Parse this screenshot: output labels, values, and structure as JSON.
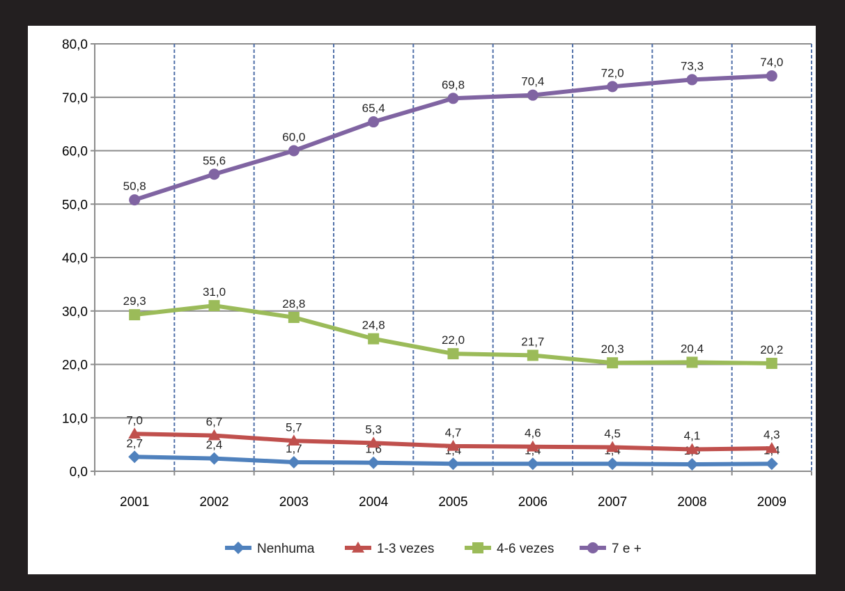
{
  "chart_data": {
    "type": "line",
    "categories": [
      "2001",
      "2002",
      "2003",
      "2004",
      "2005",
      "2006",
      "2007",
      "2008",
      "2009"
    ],
    "ylim": [
      0,
      80
    ],
    "yticks": [
      "0,0",
      "10,0",
      "20,0",
      "30,0",
      "40,0",
      "50,0",
      "60,0",
      "70,0",
      "80,0"
    ],
    "ytick_values": [
      0,
      10,
      20,
      30,
      40,
      50,
      60,
      70,
      80
    ],
    "grid": true,
    "legend_position": "bottom",
    "series": [
      {
        "name": "Nenhuma",
        "marker": "diamond",
        "color": "#4f81bd",
        "values": [
          2.7,
          2.4,
          1.7,
          1.6,
          1.4,
          1.4,
          1.4,
          1.3,
          1.4
        ],
        "labels": [
          "2,7",
          "2,4",
          "1,7",
          "1,6",
          "1,4",
          "1,4",
          "1,4",
          "1,3",
          "1,4"
        ]
      },
      {
        "name": "1-3 vezes",
        "marker": "triangle",
        "color": "#c0504d",
        "values": [
          7.0,
          6.7,
          5.7,
          5.3,
          4.7,
          4.6,
          4.5,
          4.1,
          4.3
        ],
        "labels": [
          "7,0",
          "6,7",
          "5,7",
          "5,3",
          "4,7",
          "4,6",
          "4,5",
          "4,1",
          "4,3"
        ]
      },
      {
        "name": "4-6 vezes",
        "marker": "square",
        "color": "#9bbb59",
        "values": [
          29.3,
          31.0,
          28.8,
          24.8,
          22.0,
          21.7,
          20.3,
          20.4,
          20.2
        ],
        "labels": [
          "29,3",
          "31,0",
          "28,8",
          "24,8",
          "22,0",
          "21,7",
          "20,3",
          "20,4",
          "20,2"
        ]
      },
      {
        "name": "7 e +",
        "marker": "circle",
        "color": "#8064a2",
        "values": [
          50.8,
          55.6,
          60.0,
          65.4,
          69.8,
          70.4,
          72.0,
          73.3,
          74.0
        ],
        "labels": [
          "50,8",
          "55,6",
          "60,0",
          "65,4",
          "69,8",
          "70,4",
          "72,0",
          "73,3",
          "74,0"
        ]
      }
    ]
  }
}
